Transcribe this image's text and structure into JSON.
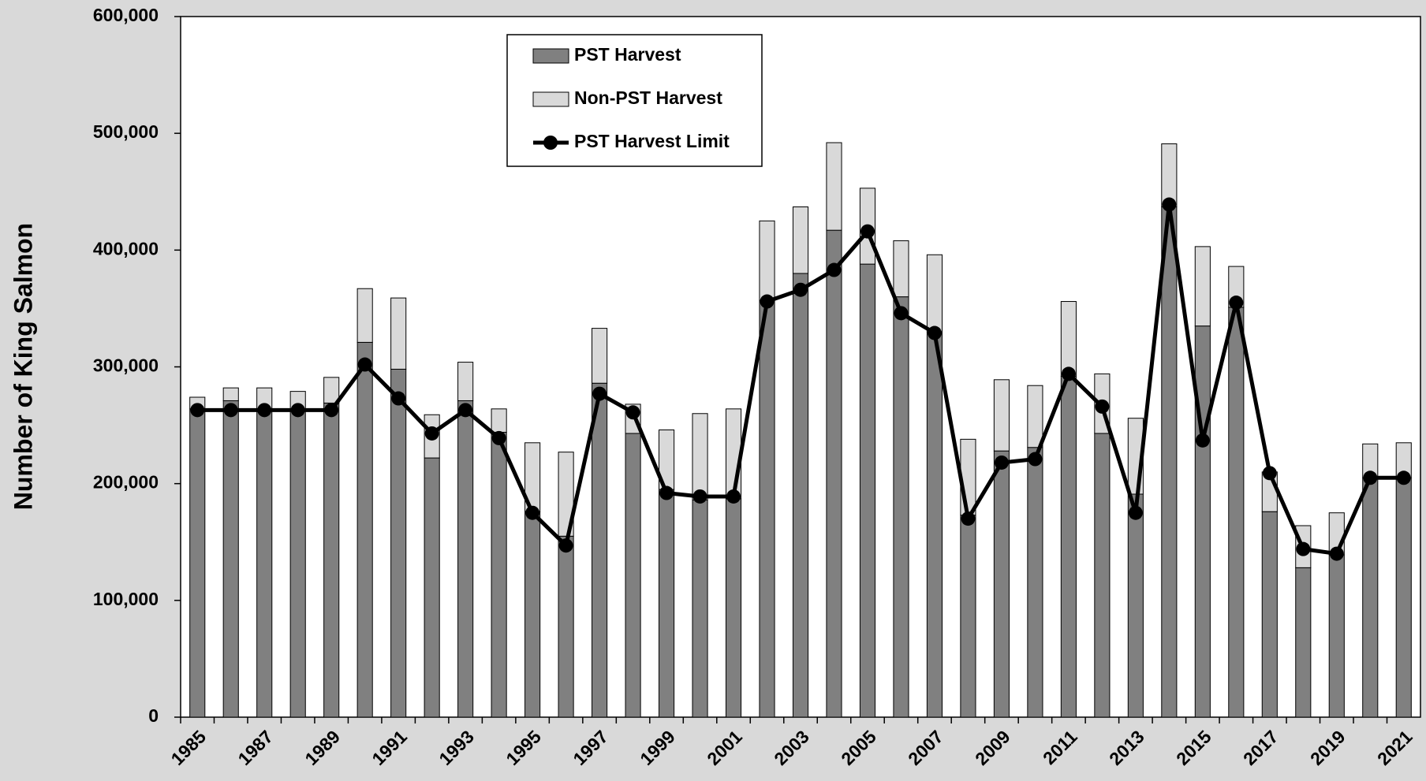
{
  "chart_data": {
    "type": "bar",
    "stacked": true,
    "y_label": "Number of King Salmon",
    "categories": [
      "1985",
      null,
      "1987",
      null,
      "1989",
      null,
      "1991",
      null,
      "1993",
      null,
      "1995",
      null,
      "1997",
      null,
      "1999",
      null,
      "2001",
      null,
      "2003",
      null,
      "2005",
      null,
      "2007",
      null,
      "2009",
      null,
      "2011",
      null,
      "2013",
      null,
      "2015",
      null,
      "2017",
      null,
      "2019",
      null,
      "2021"
    ],
    "series": [
      {
        "name": "PST Harvest",
        "type": "bar",
        "color": "#808080",
        "values": [
          264000,
          271000,
          264000,
          263000,
          269000,
          321000,
          298000,
          222000,
          271000,
          244000,
          176000,
          155000,
          286000,
          243000,
          195000,
          186000,
          187000,
          357000,
          380000,
          417000,
          388000,
          360000,
          330000,
          173000,
          228000,
          231000,
          292000,
          243000,
          191000,
          437000,
          335000,
          351000,
          176000,
          128000,
          139000,
          205000,
          205000
        ]
      },
      {
        "name": "Non-PST Harvest",
        "type": "bar",
        "color": "#d9d9d9",
        "values": [
          10000,
          11000,
          18000,
          16000,
          22000,
          46000,
          61000,
          37000,
          33000,
          20000,
          59000,
          72000,
          47000,
          25000,
          51000,
          74000,
          77000,
          68000,
          57000,
          75000,
          65000,
          48000,
          66000,
          65000,
          61000,
          53000,
          64000,
          51000,
          65000,
          54000,
          68000,
          35000,
          34000,
          36000,
          36000,
          29000,
          30000
        ]
      },
      {
        "name": "PST Harvest Limit",
        "type": "line",
        "color": "#000000",
        "values": [
          263000,
          263000,
          263000,
          263000,
          263000,
          302000,
          273000,
          243000,
          263000,
          239000,
          175000,
          147000,
          277000,
          261000,
          192000,
          189000,
          189000,
          356000,
          366000,
          383000,
          416000,
          346000,
          329000,
          170000,
          218000,
          221000,
          294000,
          266000,
          175000,
          439000,
          237000,
          355000,
          209000,
          144000,
          140000,
          205000,
          205000
        ]
      }
    ],
    "ylim": [
      0,
      600000
    ],
    "yticks": [
      0,
      {
        "value": 100000,
        "label": "100,000"
      },
      {
        "value": 200000,
        "label": "200,000"
      },
      {
        "value": 300000,
        "label": "300,000"
      },
      {
        "value": 400000,
        "label": "400,000"
      },
      {
        "value": 500000,
        "label": "500,000"
      },
      {
        "value": 600000,
        "label": "600,000"
      }
    ],
    "legend": "top-left",
    "grid": false
  }
}
